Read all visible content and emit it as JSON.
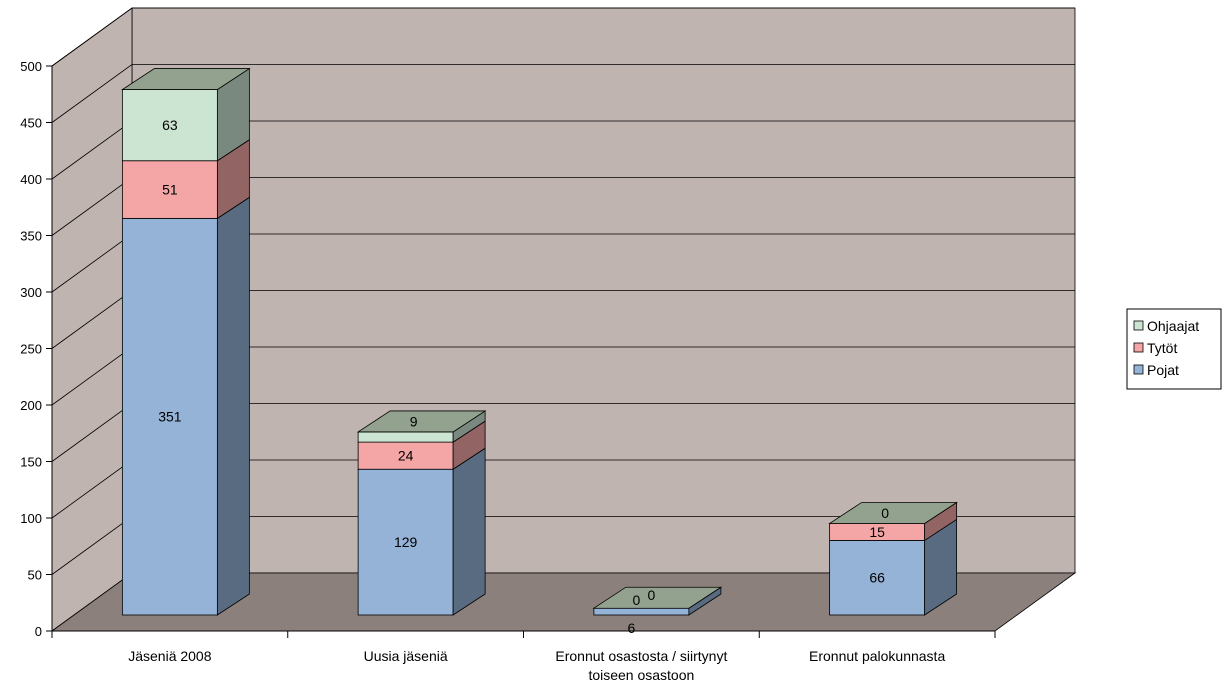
{
  "chart_data": {
    "type": "bar",
    "stacked": true,
    "three_d": true,
    "categories": [
      "Jäseniä 2008",
      "Uusia jäseniä",
      "Eronnut osastosta / siirtynyt toiseen osastoon",
      "Eronnut palokunnasta"
    ],
    "category_label_lines": [
      [
        "Jäseniä 2008"
      ],
      [
        "Uusia jäseniä"
      ],
      [
        "Eronnut osastosta / siirtynyt",
        "toiseen osastoon"
      ],
      [
        "Eronnut palokunnasta"
      ]
    ],
    "series": [
      {
        "name": "Pojat",
        "values": [
          351,
          129,
          6,
          66
        ],
        "color": "#95B3D7"
      },
      {
        "name": "Tytöt",
        "values": [
          51,
          24,
          0,
          15
        ],
        "color": "#F4A6A6"
      },
      {
        "name": "Ohjaajat",
        "values": [
          63,
          9,
          0,
          0
        ],
        "color": "#CCE5D3"
      }
    ],
    "legend_order": [
      "Ohjaajat",
      "Tytöt",
      "Pojat"
    ],
    "ylim": [
      0,
      500
    ],
    "yticks": [
      0,
      50,
      100,
      150,
      200,
      250,
      300,
      350,
      400,
      450,
      500
    ],
    "grid": true,
    "legend_position": "right",
    "title": "",
    "xlabel": "",
    "ylabel": "",
    "wall_color": "#C0B4B0",
    "floor_color": "#8C807C"
  }
}
